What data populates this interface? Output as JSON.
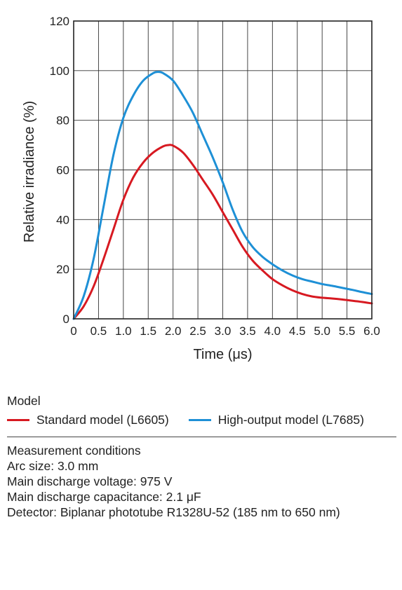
{
  "chart_data": {
    "type": "line",
    "xlabel": "Time (μs)",
    "ylabel": "Relative irradiance (%)",
    "xlim": [
      0,
      6.0
    ],
    "ylim": [
      0,
      120
    ],
    "x_ticks": [
      "0",
      "0.5",
      "1.0",
      "1.5",
      "2.0",
      "2.5",
      "3.0",
      "3.5",
      "4.0",
      "4.5",
      "5.0",
      "5.5",
      "6.0"
    ],
    "y_ticks": [
      "0",
      "20",
      "40",
      "60",
      "80",
      "100",
      "120"
    ],
    "grid": true,
    "series": [
      {
        "name": "Standard model (L6605)",
        "color": "#d71921",
        "x": [
          0,
          0.2,
          0.4,
          0.6,
          0.8,
          1.0,
          1.2,
          1.4,
          1.6,
          1.8,
          1.9,
          2.0,
          2.2,
          2.4,
          2.6,
          2.8,
          3.0,
          3.2,
          3.4,
          3.6,
          3.8,
          4.0,
          4.2,
          4.4,
          4.6,
          4.8,
          5.0,
          5.2,
          5.4,
          5.6,
          5.8,
          6.0
        ],
        "values": [
          0,
          5,
          13,
          24,
          36,
          48,
          57,
          63,
          67,
          69.5,
          70,
          69.8,
          67,
          62,
          56,
          50,
          43,
          36,
          29,
          23.5,
          19.5,
          16,
          13.5,
          11.5,
          10,
          9,
          8.5,
          8.2,
          7.8,
          7.3,
          6.8,
          6.2
        ]
      },
      {
        "name": "High-output model (L7685)",
        "color": "#1e90d6",
        "x": [
          0,
          0.2,
          0.4,
          0.6,
          0.8,
          1.0,
          1.2,
          1.4,
          1.6,
          1.7,
          1.8,
          2.0,
          2.2,
          2.4,
          2.6,
          2.8,
          3.0,
          3.2,
          3.4,
          3.6,
          3.8,
          4.0,
          4.2,
          4.4,
          4.6,
          4.8,
          5.0,
          5.2,
          5.4,
          5.6,
          5.8,
          6.0
        ],
        "values": [
          0,
          9,
          24,
          45,
          66,
          81,
          90,
          96,
          99,
          99.5,
          99,
          96,
          90,
          83,
          74,
          65,
          55,
          44,
          35,
          29,
          25,
          22,
          19.5,
          17.5,
          16,
          15,
          14,
          13.3,
          12.5,
          11.7,
          10.8,
          10
        ]
      }
    ]
  },
  "legend": {
    "title": "Model"
  },
  "conditions": {
    "title": "Measurement conditions",
    "lines": [
      "Arc size: 3.0 mm",
      "Main discharge voltage: 975 V",
      "Main discharge capacitance: 2.1 μF",
      "Detector: Biplanar phototube R1328U-52 (185 nm to 650 nm)"
    ]
  }
}
